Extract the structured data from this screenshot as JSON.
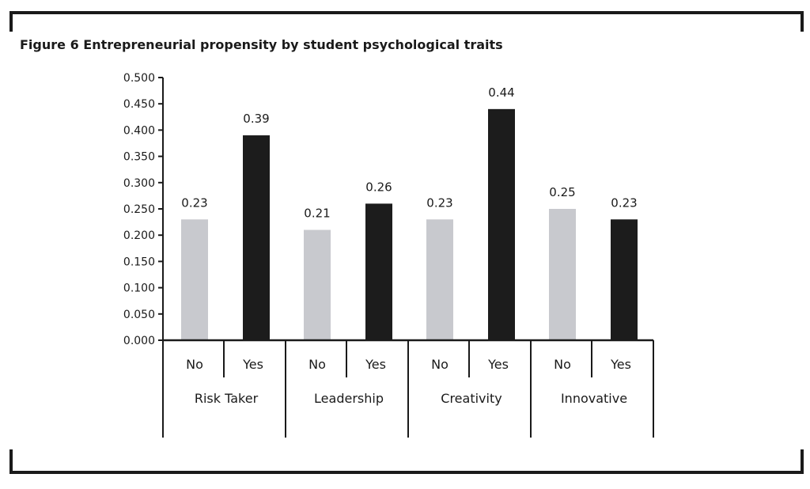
{
  "figure": {
    "title": "Figure 6  Entrepreneurial propensity by student psychological traits"
  },
  "chart_data": {
    "type": "bar",
    "title": "",
    "xlabel": "",
    "ylabel": "",
    "ylim": [
      0,
      0.5
    ],
    "yticks": [
      "0.000",
      "0.050",
      "0.100",
      "0.150",
      "0.200",
      "0.250",
      "0.300",
      "0.350",
      "0.400",
      "0.450",
      "0.500"
    ],
    "groups": [
      {
        "label": "Risk Taker",
        "bars": [
          {
            "category": "No",
            "value": 0.23,
            "label": "0.23"
          },
          {
            "category": "Yes",
            "value": 0.39,
            "label": "0.39"
          }
        ]
      },
      {
        "label": "Leadership",
        "bars": [
          {
            "category": "No",
            "value": 0.21,
            "label": "0.21"
          },
          {
            "category": "Yes",
            "value": 0.26,
            "label": "0.26"
          }
        ]
      },
      {
        "label": "Creativity",
        "bars": [
          {
            "category": "No",
            "value": 0.23,
            "label": "0.23"
          },
          {
            "category": "Yes",
            "value": 0.44,
            "label": "0.44"
          }
        ]
      },
      {
        "label": "Innovative",
        "bars": [
          {
            "category": "No",
            "value": 0.25,
            "label": "0.25"
          },
          {
            "category": "Yes",
            "value": 0.23,
            "label": "0.23"
          }
        ]
      }
    ],
    "colors": {
      "No": "#c8c9ce",
      "Yes": "#1c1c1c"
    },
    "grid": false,
    "legend": "none"
  }
}
